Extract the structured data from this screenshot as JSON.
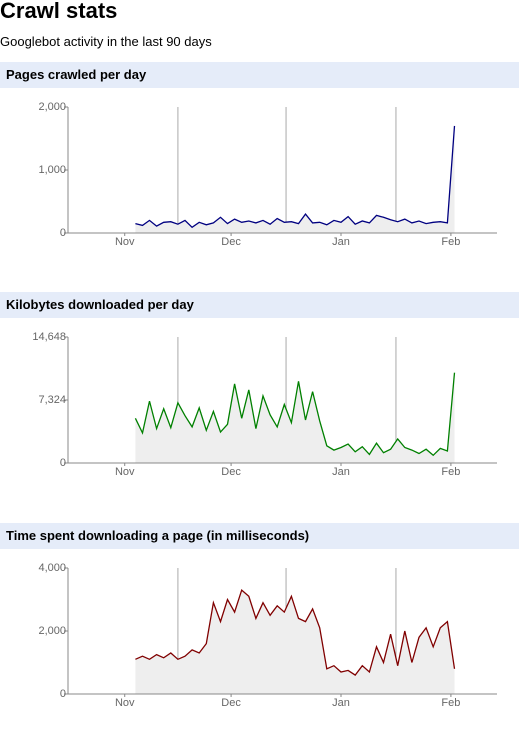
{
  "header": {
    "title": "Crawl stats",
    "subtitle": "Googlebot activity in the last 90 days"
  },
  "chart_data": [
    {
      "type": "line",
      "title": "Pages crawled per day",
      "x": [
        3,
        5,
        7,
        9,
        11,
        13,
        15,
        17,
        19,
        21,
        23,
        25,
        27,
        29,
        31,
        33,
        35,
        37,
        39,
        41,
        43,
        45,
        47,
        49,
        51,
        53,
        55,
        57,
        59,
        61,
        63,
        65,
        67,
        69,
        71,
        73,
        75,
        77,
        79,
        81,
        83,
        85,
        87,
        89,
        91,
        93
      ],
      "series": [
        {
          "color": "#000080",
          "values": [
            150,
            120,
            200,
            110,
            170,
            180,
            140,
            200,
            90,
            170,
            130,
            160,
            250,
            150,
            220,
            170,
            190,
            160,
            200,
            140,
            230,
            170,
            180,
            150,
            300,
            160,
            170,
            130,
            200,
            170,
            260,
            140,
            190,
            160,
            280,
            250,
            210,
            180,
            220,
            160,
            190,
            150,
            170,
            180,
            160,
            1700
          ]
        }
      ],
      "xlim": [
        -16,
        105
      ],
      "xticks": [
        {
          "value": 0,
          "label": "Nov"
        },
        {
          "value": 30,
          "label": "Dec"
        },
        {
          "value": 61,
          "label": "Jan"
        },
        {
          "value": 92,
          "label": "Feb"
        }
      ],
      "ylim": [
        0,
        2000
      ],
      "yticks": [
        0,
        {
          "value": 1000,
          "label": "1,000"
        },
        {
          "value": 2000,
          "label": "2,000"
        }
      ]
    },
    {
      "type": "line",
      "title": "Kilobytes downloaded per day",
      "x": [
        3,
        5,
        7,
        9,
        11,
        13,
        15,
        17,
        19,
        21,
        23,
        25,
        27,
        29,
        31,
        33,
        35,
        37,
        39,
        41,
        43,
        45,
        47,
        49,
        51,
        53,
        55,
        57,
        59,
        61,
        63,
        65,
        67,
        69,
        71,
        73,
        75,
        77,
        79,
        81,
        83,
        85,
        87,
        89,
        91,
        93
      ],
      "series": [
        {
          "color": "#008000",
          "values": [
            5200,
            3500,
            7200,
            4000,
            6300,
            4100,
            7000,
            5500,
            4200,
            6400,
            3800,
            6000,
            3600,
            4500,
            9200,
            5200,
            8500,
            4000,
            7800,
            5600,
            4200,
            6800,
            4700,
            9500,
            5000,
            8300,
            4900,
            2000,
            1500,
            1800,
            2200,
            1300,
            1900,
            1000,
            2300,
            1200,
            1600,
            2800,
            1800,
            1500,
            1100,
            1600,
            900,
            1700,
            1400,
            10500
          ]
        }
      ],
      "xlim": [
        -16,
        105
      ],
      "xticks": [
        {
          "value": 0,
          "label": "Nov"
        },
        {
          "value": 30,
          "label": "Dec"
        },
        {
          "value": 61,
          "label": "Jan"
        },
        {
          "value": 92,
          "label": "Feb"
        }
      ],
      "ylim": [
        0,
        14648
      ],
      "yticks": [
        0,
        {
          "value": 7324,
          "label": "7,324"
        },
        {
          "value": 14648,
          "label": "14,648"
        }
      ]
    },
    {
      "type": "line",
      "title": "Time spent downloading a page (in milliseconds)",
      "x": [
        3,
        5,
        7,
        9,
        11,
        13,
        15,
        17,
        19,
        21,
        23,
        25,
        27,
        29,
        31,
        33,
        35,
        37,
        39,
        41,
        43,
        45,
        47,
        49,
        51,
        53,
        55,
        57,
        59,
        61,
        63,
        65,
        67,
        69,
        71,
        73,
        75,
        77,
        79,
        81,
        83,
        85,
        87,
        89,
        91,
        93
      ],
      "series": [
        {
          "color": "#800000",
          "values": [
            1100,
            1200,
            1100,
            1250,
            1150,
            1300,
            1100,
            1200,
            1400,
            1300,
            1600,
            2900,
            2300,
            3000,
            2600,
            3300,
            3100,
            2400,
            2900,
            2500,
            2800,
            2600,
            3100,
            2400,
            2300,
            2700,
            2100,
            800,
            900,
            700,
            750,
            600,
            900,
            700,
            1500,
            1000,
            1900,
            900,
            2000,
            1000,
            1800,
            2100,
            1500,
            2100,
            2300,
            800
          ]
        }
      ],
      "xlim": [
        -16,
        105
      ],
      "xticks": [
        {
          "value": 0,
          "label": "Nov"
        },
        {
          "value": 30,
          "label": "Dec"
        },
        {
          "value": 61,
          "label": "Jan"
        },
        {
          "value": 92,
          "label": "Feb"
        }
      ],
      "ylim": [
        0,
        4000
      ],
      "yticks": [
        0,
        {
          "value": 2000,
          "label": "2,000"
        },
        {
          "value": 4000,
          "label": "4,000"
        }
      ]
    }
  ]
}
